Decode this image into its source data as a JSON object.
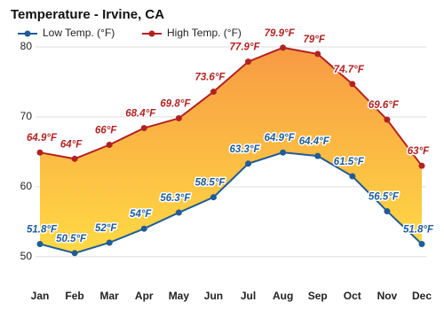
{
  "chart_data": {
    "type": "line",
    "title": "Temperature - Irvine, CA",
    "categories": [
      "Jan",
      "Feb",
      "Mar",
      "Apr",
      "May",
      "Jun",
      "Jul",
      "Aug",
      "Sep",
      "Oct",
      "Nov",
      "Dec"
    ],
    "series": [
      {
        "name": "Low Temp. (°F)",
        "color": "#1f5c99",
        "values": [
          51.8,
          50.5,
          52,
          54,
          56.3,
          58.5,
          63.3,
          64.9,
          64.4,
          61.5,
          56.5,
          51.8
        ],
        "value_labels": [
          "51.8°F",
          "50.5°F",
          "52°F",
          "54°F",
          "56.3°F",
          "58.5°F",
          "63.3°F",
          "64.9°F",
          "64.4°F",
          "61.5°F",
          "56.5°F",
          "51.8°F"
        ]
      },
      {
        "name": "High Temp. (°F)",
        "color": "#b22222",
        "values": [
          64.9,
          64,
          66,
          68.4,
          69.8,
          73.6,
          77.9,
          79.9,
          79,
          74.7,
          69.6,
          63
        ],
        "value_labels": [
          "64.9°F",
          "64°F",
          "66°F",
          "68.4°F",
          "69.8°F",
          "73.6°F",
          "77.9°F",
          "79.9°F",
          "79°F",
          "74.7°F",
          "69.6°F",
          "63°F"
        ]
      }
    ],
    "ylim": [
      46.8,
      81.4
    ],
    "yticks": [
      50,
      60,
      70,
      80
    ],
    "grid": true
  }
}
